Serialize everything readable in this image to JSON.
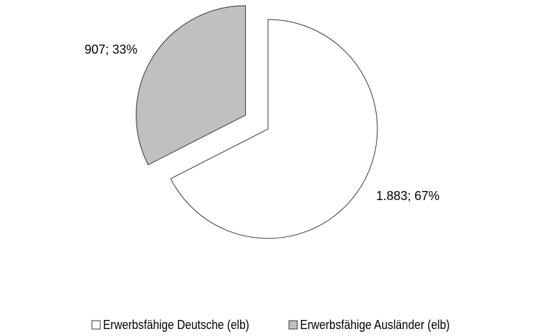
{
  "chart_data": {
    "type": "pie",
    "categories": [
      "Erwerbsfähige Deutsche (elb)",
      "Erwerbsfähige Ausländer (elb)"
    ],
    "values": [
      1883,
      907
    ],
    "value_labels": [
      "1.883; 67%",
      "907; 33%"
    ],
    "colors": [
      "#ffffff",
      "#c0c0c0"
    ],
    "legend": "bottom"
  }
}
